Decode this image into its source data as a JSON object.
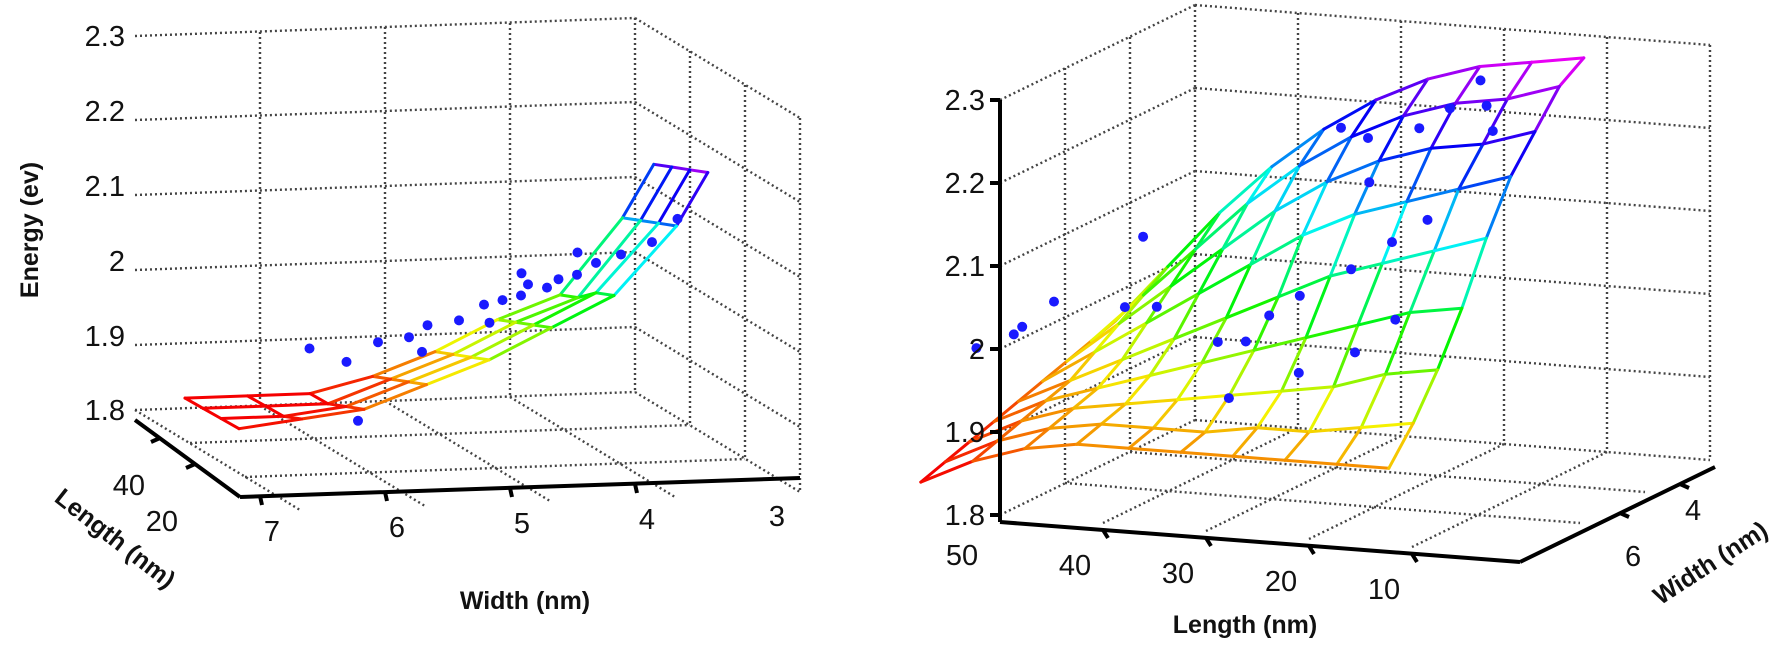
{
  "chart_data": [
    {
      "type": "surface3d",
      "title": "",
      "xlabel": "Width (nm)",
      "ylabel": "Length (nm)",
      "zlabel": "Energy (ev)",
      "x_ticks": [
        "7",
        "6",
        "5",
        "4",
        "3"
      ],
      "y_ticks": [
        "40",
        "20"
      ],
      "z_ticks": [
        "2.3",
        "2.2",
        "2.1",
        "2",
        "1.9",
        "1.8"
      ],
      "xlim": [
        3,
        7
      ],
      "ylim": [
        0,
        50
      ],
      "zlim": [
        1.8,
        2.3
      ],
      "grid": true,
      "surface": {
        "widths": [
          3.25,
          3.5,
          4.0,
          4.5,
          5.0,
          5.5,
          6.0,
          6.5,
          7.0
        ],
        "lengths": [
          5,
          20,
          35,
          50
        ],
        "energy": [
          [
            2.18,
            2.17,
            2.16,
            2.15
          ],
          [
            2.11,
            2.1,
            2.09,
            2.08
          ],
          [
            2.02,
            2.01,
            1.99,
            1.98
          ],
          [
            1.98,
            1.97,
            1.96,
            1.95
          ],
          [
            1.94,
            1.93,
            1.92,
            1.91
          ],
          [
            1.91,
            1.9,
            1.89,
            1.88
          ],
          [
            1.88,
            1.87,
            1.86,
            1.86
          ],
          [
            1.87,
            1.86,
            1.86,
            1.86
          ],
          [
            1.86,
            1.86,
            1.86,
            1.86
          ]
        ]
      },
      "points": [
        [
          3.3,
          25,
          2.1
        ],
        [
          3.6,
          15,
          2.08
        ],
        [
          3.8,
          20,
          2.06
        ],
        [
          4.0,
          20,
          2.05
        ],
        [
          4.1,
          25,
          2.06
        ],
        [
          4.2,
          15,
          2.04
        ],
        [
          4.3,
          20,
          2.03
        ],
        [
          4.5,
          30,
          2.03
        ],
        [
          4.6,
          20,
          2.01
        ],
        [
          4.7,
          25,
          2.0
        ],
        [
          4.8,
          30,
          1.99
        ],
        [
          4.9,
          15,
          1.98
        ],
        [
          5.0,
          30,
          1.97
        ],
        [
          5.3,
          25,
          1.97
        ],
        [
          5.4,
          30,
          1.95
        ],
        [
          5.6,
          35,
          1.94
        ],
        [
          5.9,
          30,
          1.92
        ],
        [
          6.1,
          40,
          1.93
        ],
        [
          5.2,
          40,
          1.92
        ],
        [
          6.0,
          10,
          1.86
        ],
        [
          4.2,
          40,
          2.0
        ],
        [
          4.4,
          35,
          2.01
        ]
      ]
    },
    {
      "type": "surface3d",
      "title": "",
      "xlabel": "Length (nm)",
      "ylabel": "Width (nm)",
      "zlabel": "",
      "x_ticks": [
        "50",
        "40",
        "30",
        "20",
        "10"
      ],
      "y_ticks": [
        "4",
        "6"
      ],
      "z_ticks": [
        "2.3",
        "2.2",
        "2.1",
        "2",
        "1.9",
        "1.8"
      ],
      "xlim": [
        0,
        50
      ],
      "ylim": [
        3,
        7
      ],
      "zlim": [
        1.8,
        2.3
      ],
      "grid": true,
      "surface": {
        "lengths": [
          48,
          43,
          38,
          33,
          28,
          23,
          18,
          13,
          8,
          3
        ],
        "widths": [
          3.0,
          3.5,
          4.0,
          4.5,
          5.0,
          5.5,
          6.0,
          6.5,
          7.0
        ],
        "energy": [
          [
            1.93,
            1.92,
            1.91,
            1.9,
            1.89,
            1.88,
            1.87,
            1.86,
            1.85
          ],
          [
            2.0,
            1.98,
            1.96,
            1.94,
            1.92,
            1.91,
            1.9,
            1.89,
            1.88
          ],
          [
            2.07,
            2.04,
            2.01,
            1.98,
            1.95,
            1.93,
            1.92,
            1.91,
            1.9
          ],
          [
            2.13,
            2.1,
            2.06,
            2.02,
            1.98,
            1.95,
            1.93,
            1.92,
            1.91
          ],
          [
            2.18,
            2.15,
            2.11,
            2.06,
            2.01,
            1.97,
            1.94,
            1.92,
            1.91
          ],
          [
            2.22,
            2.19,
            2.15,
            2.1,
            2.04,
            1.99,
            1.95,
            1.92,
            1.91
          ],
          [
            2.25,
            2.22,
            2.18,
            2.13,
            2.07,
            2.01,
            1.96,
            1.93,
            1.91
          ],
          [
            2.27,
            2.24,
            2.2,
            2.15,
            2.09,
            2.03,
            1.97,
            1.93,
            1.91
          ],
          [
            2.28,
            2.25,
            2.21,
            2.17,
            2.11,
            2.05,
            1.99,
            1.94,
            1.91
          ],
          [
            2.29,
            2.27,
            2.23,
            2.19,
            2.13,
            2.06,
            2.0,
            1.95,
            1.91
          ]
        ]
      },
      "points": [
        [
          12,
          3.2,
          2.26
        ],
        [
          10,
          3.5,
          2.24
        ],
        [
          14,
          3.4,
          2.23
        ],
        [
          8,
          3.8,
          2.22
        ],
        [
          16,
          3.6,
          2.21
        ],
        [
          20,
          3.8,
          2.2
        ],
        [
          24,
          3.5,
          2.2
        ],
        [
          18,
          4.2,
          2.16
        ],
        [
          11,
          4.5,
          2.13
        ],
        [
          13,
          4.8,
          2.11
        ],
        [
          16,
          5.0,
          2.08
        ],
        [
          20,
          5.2,
          2.05
        ],
        [
          22,
          5.4,
          2.03
        ],
        [
          26,
          5.6,
          2.0
        ],
        [
          30,
          6.0,
          2.05
        ],
        [
          34,
          5.8,
          2.04
        ],
        [
          38,
          6.4,
          2.06
        ],
        [
          40,
          6.8,
          2.03
        ],
        [
          42,
          6.2,
          2.02
        ],
        [
          45,
          6.5,
          2.0
        ],
        [
          28,
          4.6,
          1.97
        ],
        [
          24,
          5.8,
          1.94
        ],
        [
          36,
          5.0,
          2.1
        ],
        [
          8,
          5.8,
          2.05
        ],
        [
          10,
          6.2,
          2.02
        ],
        [
          14,
          6.5,
          2.0
        ]
      ]
    }
  ]
}
